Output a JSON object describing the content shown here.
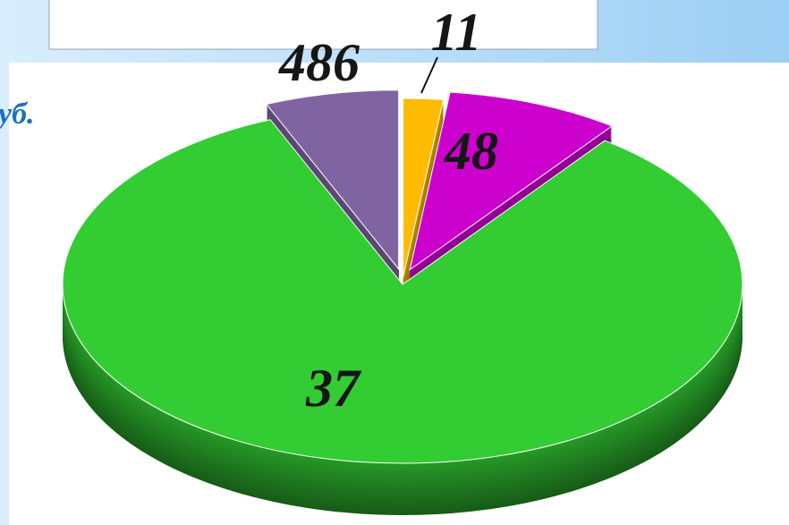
{
  "chart_data": {
    "type": "pie",
    "annotation": "уб.",
    "categories": [
      null,
      null,
      null,
      null
    ],
    "values": [
      11,
      48,
      486,
      37
    ],
    "colors": [
      "#ffbb00",
      "#cc00cc",
      "#33cc33",
      "#8064a2"
    ]
  }
}
